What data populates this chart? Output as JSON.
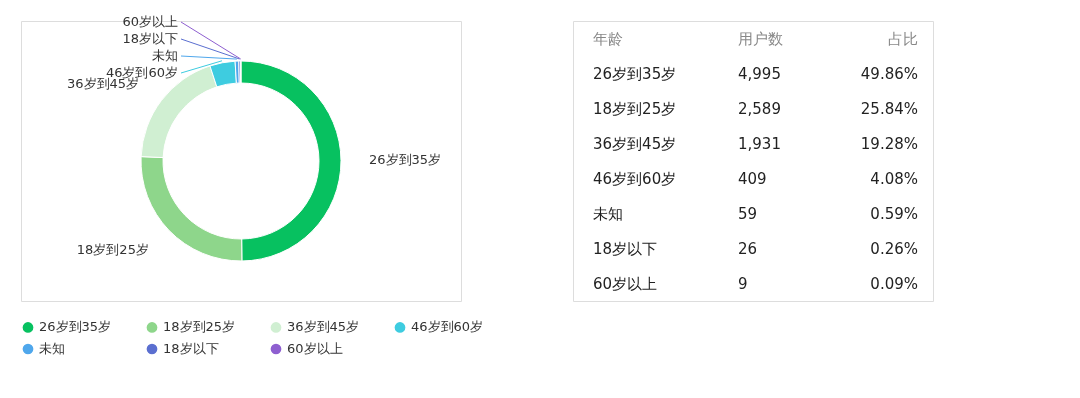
{
  "chart_data": {
    "type": "donut",
    "categories": [
      "26岁到35岁",
      "18岁到25岁",
      "36岁到45岁",
      "46岁到60岁",
      "未知",
      "18岁以下",
      "60岁以上"
    ],
    "values": [
      49.86,
      25.84,
      19.28,
      4.08,
      0.59,
      0.26,
      0.09
    ],
    "colors": [
      "#07c160",
      "#8ed68b",
      "#d0efd2",
      "#3ecce0",
      "#4fa7ec",
      "#5b6fd0",
      "#8e5fd0"
    ],
    "legend": "bottom",
    "annotations": [
      "年龄",
      "用户数",
      "占比",
      "4,995",
      "2,589",
      "1,931",
      "409",
      "59",
      "26",
      "9",
      "49.86%",
      "25.84%",
      "19.28%",
      "4.08%",
      "0.59%",
      "0.26%",
      "0.09%"
    ]
  }
}
